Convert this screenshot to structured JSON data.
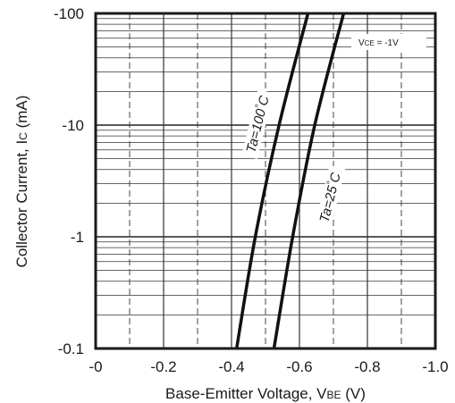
{
  "chart_data": {
    "type": "line",
    "title": "",
    "xlabel": {
      "prefix": "Base-Emitter Voltage, V",
      "sub": "BE",
      "suffix": " (V)"
    },
    "ylabel": {
      "prefix": "Collector Current, I",
      "sub": "C",
      "suffix": " (mA)"
    },
    "x_ticks": [
      "-0",
      "-0.2",
      "-0.4",
      "-0.6",
      "-0.8",
      "-1.0"
    ],
    "y_ticks": [
      "-100",
      "-10",
      "-1",
      "-0.1"
    ],
    "xlim": [
      0,
      -1.0
    ],
    "ylim": [
      -0.1,
      -100
    ],
    "y_scale": "log",
    "grid": true,
    "condition": {
      "prefix": "V",
      "sub": "CE",
      "suffix": " = -1V"
    },
    "series": [
      {
        "name": "Ta=100°C",
        "label": {
          "prefix": "Ta=100",
          "sup": "°",
          "suffix": "C"
        },
        "points": [
          [
            -0.415,
            -0.1
          ],
          [
            -0.47,
            -1
          ],
          [
            -0.54,
            -10
          ],
          [
            -0.625,
            -100
          ]
        ]
      },
      {
        "name": "Ta=25°C",
        "label": {
          "prefix": "Ta=25",
          "sup": "°",
          "suffix": "C"
        },
        "points": [
          [
            -0.525,
            -0.1
          ],
          [
            -0.58,
            -1
          ],
          [
            -0.645,
            -10
          ],
          [
            -0.73,
            -100
          ]
        ]
      }
    ]
  }
}
